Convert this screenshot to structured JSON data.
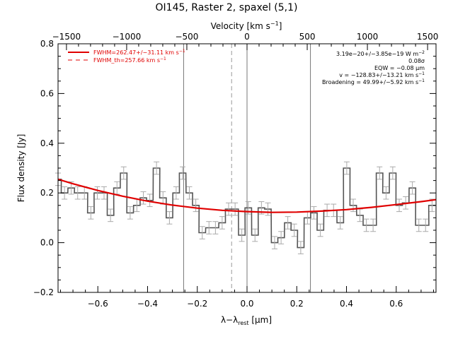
{
  "chart_data": {
    "type": "line",
    "title": "OI145, Raster 2, spaxel (5,1)",
    "xlabel": "λ−λ",
    "xlabel_sub": "rest",
    "xlabel_unit": " [μm]",
    "ylabel": "Flux density [Jy]",
    "top_axis_label": "Velocity [km s",
    "top_axis_label_sup": "−1",
    "top_axis_label_end": "]",
    "xlim": [
      -0.76,
      0.76
    ],
    "ylim": [
      -0.2,
      0.8
    ],
    "top_xlim": [
      -1570,
      1570
    ],
    "x_ticks": [
      -0.6,
      -0.4,
      -0.2,
      0.0,
      0.2,
      0.4,
      0.6
    ],
    "x_tick_labels": [
      "−0.6",
      "−0.4",
      "−0.2",
      "0.0",
      "0.2",
      "0.4",
      "0.6"
    ],
    "y_ticks": [
      -0.2,
      0.0,
      0.2,
      0.4,
      0.6,
      0.8
    ],
    "y_tick_labels": [
      "−0.2",
      "0.0",
      "0.2",
      "0.4",
      "0.6",
      "0.8"
    ],
    "top_ticks": [
      -1500,
      -1000,
      -500,
      0,
      500,
      1000,
      1500
    ],
    "top_tick_labels": [
      "−1500",
      "−1000",
      "−500",
      "0",
      "500",
      "1000",
      "1500"
    ],
    "vertical_lines_solid": [
      -0.255,
      0.0,
      0.255
    ],
    "vertical_lines_dashed": [
      -0.062
    ],
    "legend": [
      {
        "label": "FWHM=262.47+/−31.11 km s",
        "sup": "−1",
        "style": "solid"
      },
      {
        "label": "FWHM_th=257.66 km s",
        "sup": "−1",
        "style": "dashed"
      }
    ],
    "annotations": [
      {
        "text": "3.19e−20+/−3.85e−19 W m",
        "sup": "−2"
      },
      {
        "text": "0.08σ",
        "sup": ""
      },
      {
        "text": "EQW = −0.08 μm",
        "sup": ""
      },
      {
        "text": "v = −128.83+/−13.21 km s",
        "sup": "−1"
      },
      {
        "text": "Broadening = 49.99+/−5.92 km s",
        "sup": "−1"
      }
    ],
    "series": [
      {
        "name": "data",
        "step": 0.0264,
        "x": [
          -0.76,
          -0.734,
          -0.707,
          -0.681,
          -0.654,
          -0.628,
          -0.602,
          -0.575,
          -0.549,
          -0.523,
          -0.496,
          -0.47,
          -0.443,
          -0.417,
          -0.391,
          -0.364,
          -0.338,
          -0.312,
          -0.285,
          -0.259,
          -0.232,
          -0.206,
          -0.18,
          -0.153,
          -0.127,
          -0.1,
          -0.074,
          -0.048,
          -0.021,
          0.005,
          0.032,
          0.058,
          0.084,
          0.111,
          0.137,
          0.164,
          0.19,
          0.216,
          0.243,
          0.269,
          0.295,
          0.322,
          0.348,
          0.375,
          0.401,
          0.427,
          0.454,
          0.48,
          0.507,
          0.533,
          0.559,
          0.586,
          0.612,
          0.638,
          0.665,
          0.691,
          0.718,
          0.744
        ],
        "y": [
          0.255,
          0.2,
          0.22,
          0.2,
          0.2,
          0.12,
          0.2,
          0.2,
          0.11,
          0.22,
          0.28,
          0.12,
          0.15,
          0.18,
          0.17,
          0.3,
          0.18,
          0.1,
          0.2,
          0.28,
          0.2,
          0.15,
          0.04,
          0.06,
          0.06,
          0.08,
          0.135,
          0.135,
          0.03,
          0.14,
          0.03,
          0.14,
          0.135,
          0.0,
          0.02,
          0.08,
          0.05,
          -0.02,
          0.1,
          0.12,
          0.05,
          0.13,
          0.13,
          0.08,
          0.3,
          0.15,
          0.11,
          0.07,
          0.07,
          0.28,
          0.2,
          0.28,
          0.15,
          0.16,
          0.22,
          0.07,
          0.07,
          0.15
        ],
        "error": 0.025,
        "color": "#555555"
      },
      {
        "name": "fit",
        "x": [
          -0.76,
          -0.7,
          -0.6,
          -0.5,
          -0.4,
          -0.3,
          -0.2,
          -0.1,
          0.0,
          0.1,
          0.2,
          0.3,
          0.4,
          0.5,
          0.6,
          0.7,
          0.76
        ],
        "y": [
          0.255,
          0.237,
          0.21,
          0.187,
          0.167,
          0.151,
          0.139,
          0.13,
          0.125,
          0.122,
          0.123,
          0.127,
          0.133,
          0.142,
          0.153,
          0.165,
          0.173
        ],
        "color": "#e00000"
      }
    ]
  }
}
